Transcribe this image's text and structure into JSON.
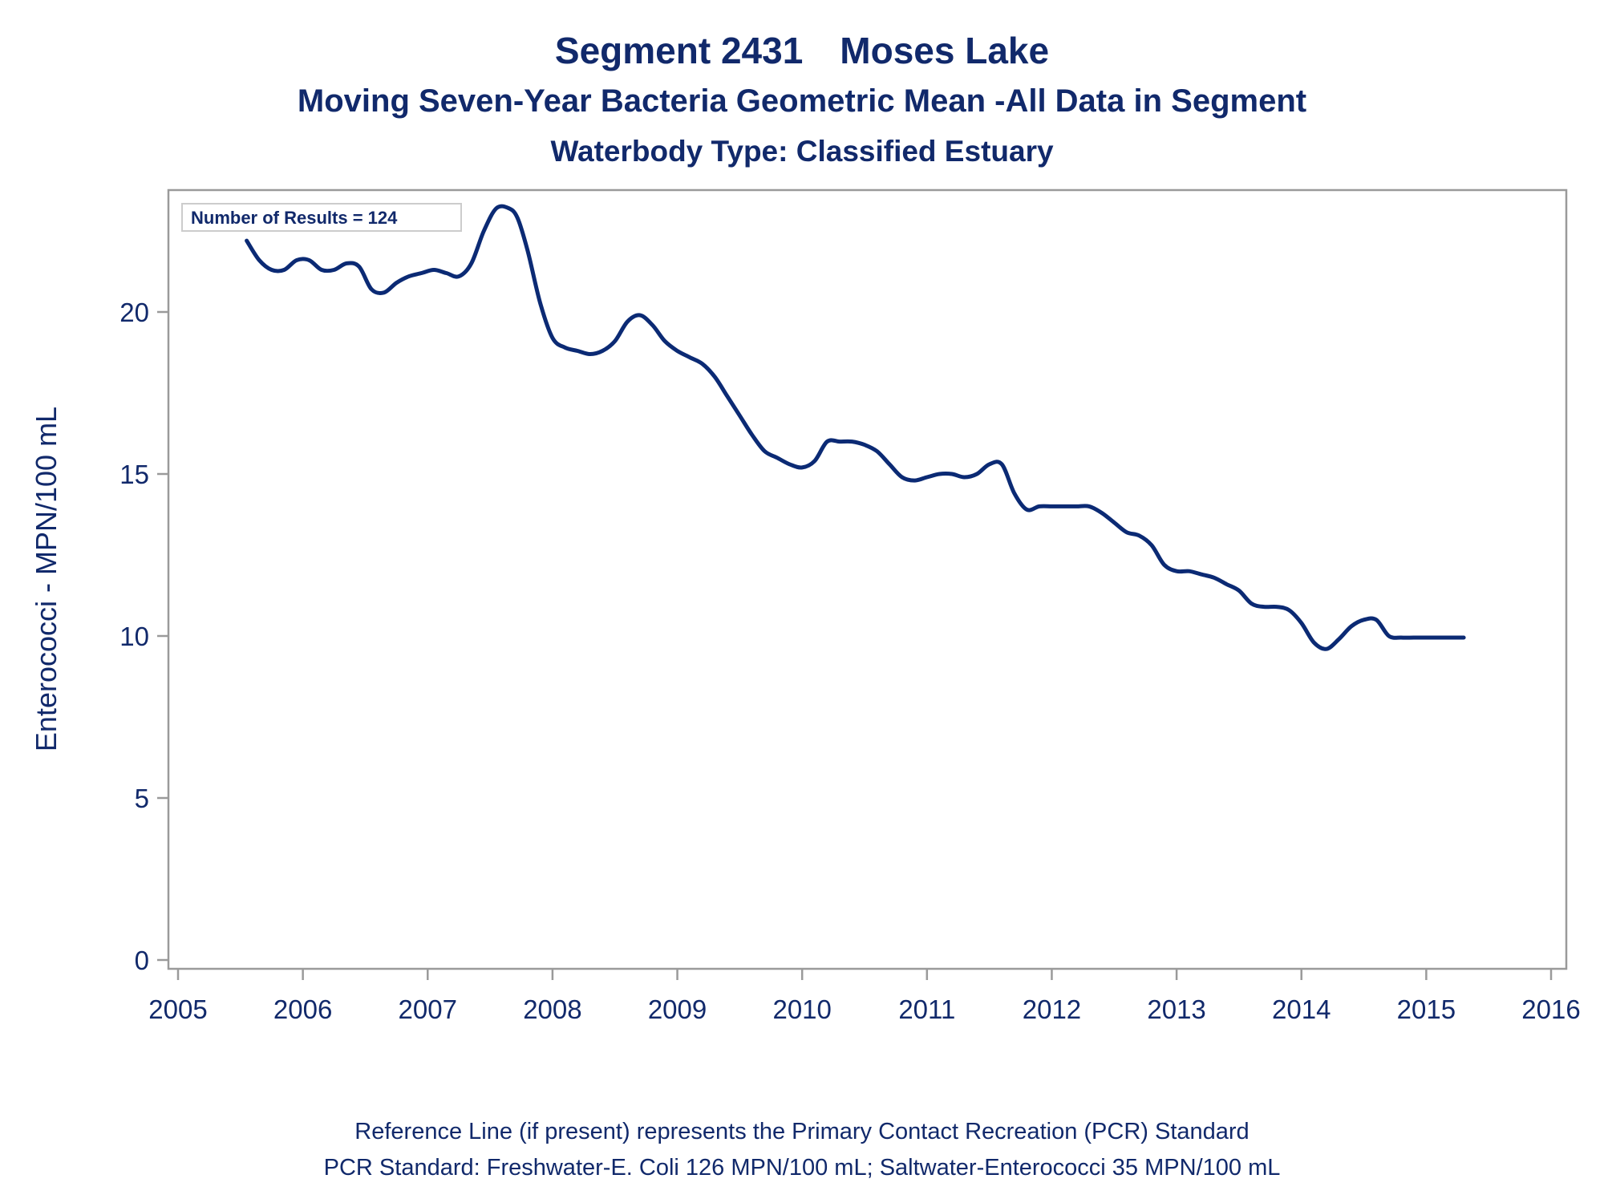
{
  "title": {
    "segment": "Segment 2431",
    "name": "Moses Lake",
    "subtitle": "Moving Seven-Year Bacteria Geometric Mean -All Data in Segment",
    "waterbody": "Waterbody Type: Classified Estuary"
  },
  "inset_label": "Number of Results = 124",
  "footnotes": [
    "Reference Line (if present) represents the Primary Contact Recreation (PCR) Standard",
    "PCR Standard: Freshwater-E. Coli 126 MPN/100 mL; Saltwater-Enterococci 35 MPN/100 mL"
  ],
  "colors": {
    "line": "#0b2a74",
    "text": "#11296b",
    "frame": "#9a9a9a"
  },
  "chart_data": {
    "type": "line",
    "ylabel": "Enterococci - MPN/100 mL",
    "xlabel": "",
    "xlim": [
      2005,
      2016
    ],
    "ylim": [
      0,
      23.5
    ],
    "x_ticks": [
      2005,
      2006,
      2007,
      2008,
      2009,
      2010,
      2011,
      2012,
      2013,
      2014,
      2015,
      2016
    ],
    "y_ticks": [
      0,
      5,
      10,
      15,
      20
    ],
    "grid": false,
    "series": [
      {
        "x": [
          2005.55,
          2005.65,
          2005.75,
          2005.85,
          2005.95,
          2006.05,
          2006.15,
          2006.25,
          2006.35,
          2006.45,
          2006.55,
          2006.65,
          2006.75,
          2006.85,
          2006.95,
          2007.05,
          2007.15,
          2007.25,
          2007.35,
          2007.45,
          2007.55,
          2007.65,
          2007.72,
          2007.8,
          2007.9,
          2008.0,
          2008.1,
          2008.2,
          2008.3,
          2008.4,
          2008.5,
          2008.6,
          2008.7,
          2008.8,
          2008.9,
          2009.0,
          2009.1,
          2009.2,
          2009.3,
          2009.4,
          2009.5,
          2009.6,
          2009.7,
          2009.8,
          2009.9,
          2010.0,
          2010.1,
          2010.2,
          2010.3,
          2010.4,
          2010.5,
          2010.6,
          2010.7,
          2010.8,
          2010.9,
          2011.0,
          2011.1,
          2011.2,
          2011.3,
          2011.4,
          2011.5,
          2011.6,
          2011.7,
          2011.8,
          2011.9,
          2012.0,
          2012.1,
          2012.2,
          2012.3,
          2012.4,
          2012.5,
          2012.6,
          2012.7,
          2012.8,
          2012.9,
          2013.0,
          2013.1,
          2013.2,
          2013.3,
          2013.4,
          2013.5,
          2013.6,
          2013.7,
          2013.8,
          2013.9,
          2014.0,
          2014.1,
          2014.2,
          2014.3,
          2014.4,
          2014.5,
          2014.6,
          2014.7,
          2014.8,
          2014.9,
          2015.0,
          2015.1,
          2015.2,
          2015.3
        ],
        "values": [
          22.2,
          21.6,
          21.3,
          21.3,
          21.6,
          21.6,
          21.3,
          21.3,
          21.5,
          21.4,
          20.7,
          20.6,
          20.9,
          21.1,
          21.2,
          21.3,
          21.2,
          21.1,
          21.5,
          22.5,
          23.2,
          23.2,
          22.9,
          21.9,
          20.3,
          19.2,
          18.9,
          18.8,
          18.7,
          18.8,
          19.1,
          19.7,
          19.9,
          19.6,
          19.1,
          18.8,
          18.6,
          18.4,
          18.0,
          17.4,
          16.8,
          16.2,
          15.7,
          15.5,
          15.3,
          15.2,
          15.4,
          16.0,
          16.0,
          16.0,
          15.9,
          15.7,
          15.3,
          14.9,
          14.8,
          14.9,
          15.0,
          15.0,
          14.9,
          15.0,
          15.3,
          15.3,
          14.4,
          13.9,
          14.0,
          14.0,
          14.0,
          14.0,
          14.0,
          13.8,
          13.5,
          13.2,
          13.1,
          12.8,
          12.2,
          12.0,
          12.0,
          11.9,
          11.8,
          11.6,
          11.4,
          11.0,
          10.9,
          10.9,
          10.8,
          10.4,
          9.8,
          9.6,
          9.9,
          10.3,
          10.5,
          10.5,
          10.0,
          9.95,
          9.95,
          9.95,
          9.95,
          9.95,
          9.95
        ]
      }
    ]
  }
}
